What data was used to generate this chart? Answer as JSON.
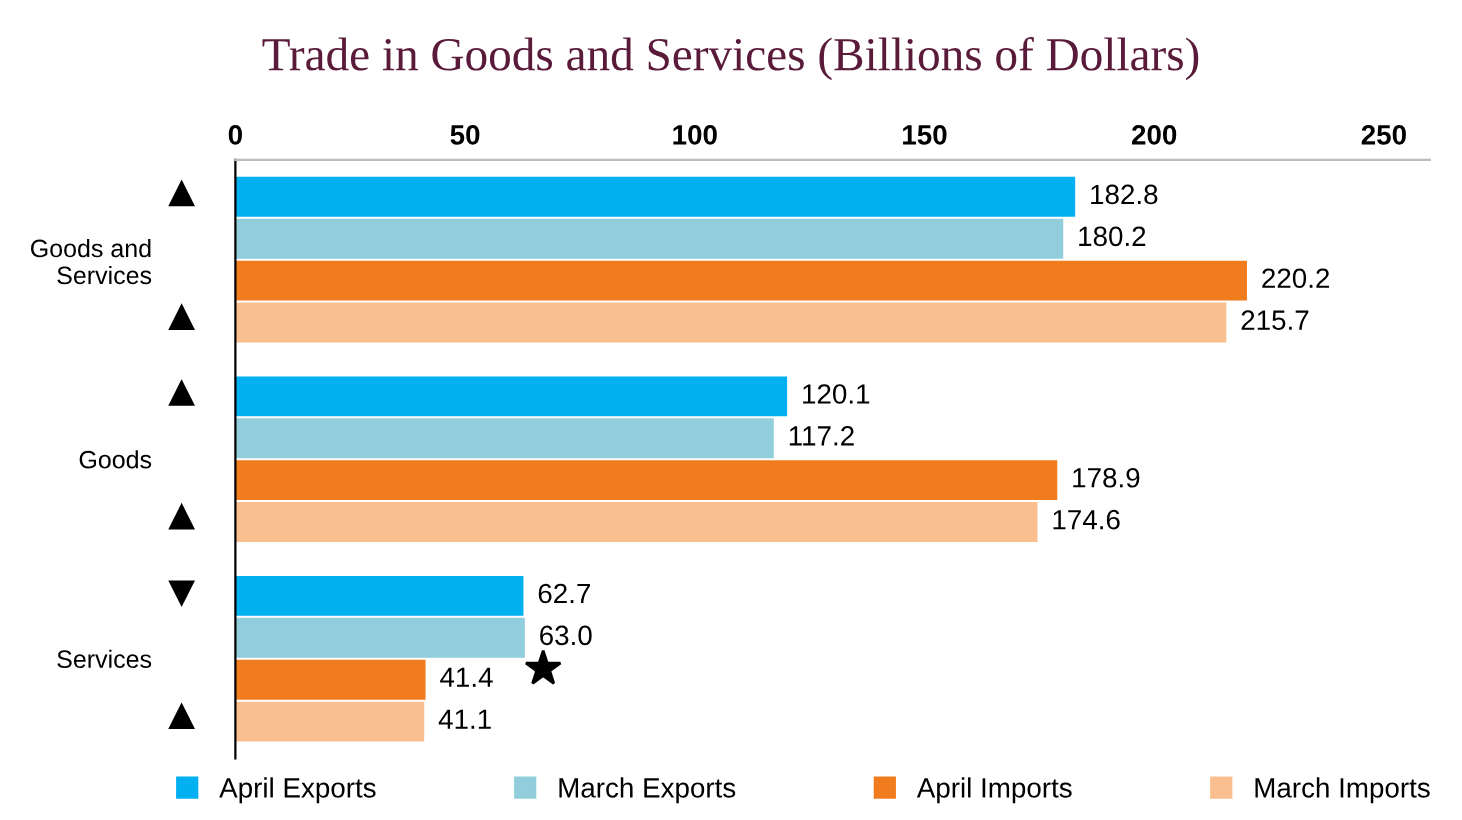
{
  "chart_data": {
    "type": "bar",
    "orientation": "horizontal",
    "title": "Trade in Goods and Services (Billions of Dollars)",
    "categories": [
      "Goods and\nServices",
      "Goods",
      "Services"
    ],
    "series": [
      {
        "name": "April Exports",
        "color": "#00b0f0",
        "values": [
          182.8,
          120.1,
          62.7
        ],
        "value_labels": [
          "182.8",
          "120.1",
          "62.7"
        ]
      },
      {
        "name": "March Exports",
        "color": "#92cddc",
        "values": [
          180.2,
          117.2,
          63.0
        ],
        "value_labels": [
          "180.2",
          "117.2",
          "63.0"
        ]
      },
      {
        "name": "April Imports",
        "color": "#f07c1e",
        "values": [
          220.2,
          178.9,
          41.4
        ],
        "value_labels": [
          "220.2",
          "178.9",
          "41.4"
        ]
      },
      {
        "name": "March Imports",
        "color": "#f9bf8f",
        "values": [
          215.7,
          174.6,
          41.1
        ],
        "value_labels": [
          "215.7",
          "174.6",
          "41.1"
        ]
      }
    ],
    "xlim": [
      0,
      260
    ],
    "xticks": [
      0,
      50,
      100,
      150,
      200,
      250
    ],
    "grid": false,
    "legend": "bottom"
  }
}
